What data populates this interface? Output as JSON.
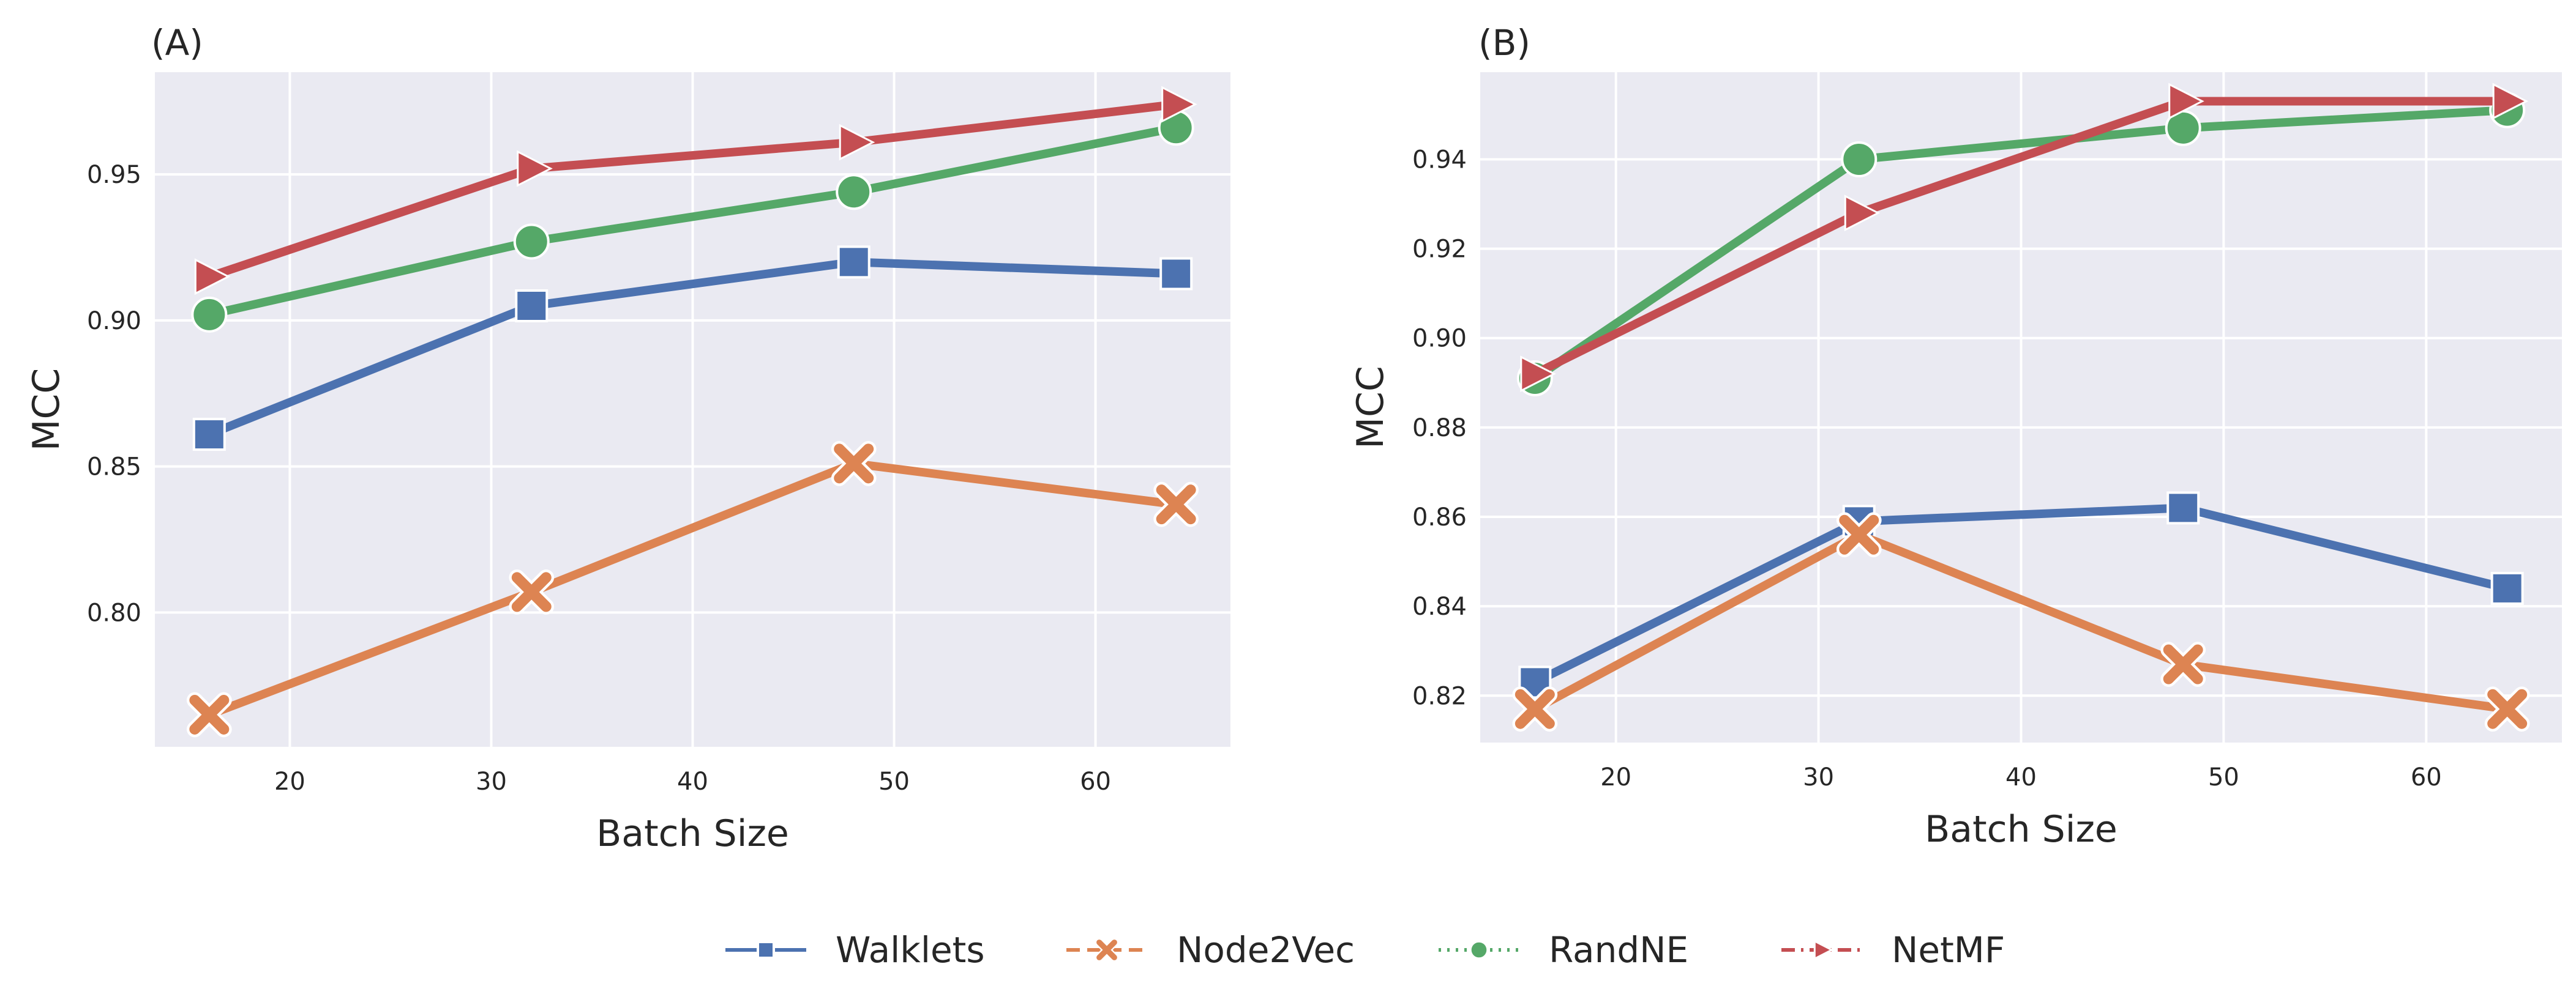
{
  "chart_data": [
    {
      "type": "line",
      "panel_label": "(A)",
      "xlabel": "Batch Size",
      "ylabel": "MCC",
      "xlim": [
        13.3,
        66.7
      ],
      "ylim": [
        0.754,
        0.985
      ],
      "xticks": [
        20,
        30,
        40,
        50,
        60
      ],
      "yticks": [
        0.8,
        0.85,
        0.9,
        0.95
      ],
      "ytick_labels": [
        "0.80",
        "0.85",
        "0.90",
        "0.95"
      ],
      "grid": true,
      "series": [
        {
          "name": "Walklets",
          "x": [
            16,
            32,
            48,
            64
          ],
          "y": [
            0.861,
            0.905,
            0.92,
            0.916
          ]
        },
        {
          "name": "Node2Vec",
          "x": [
            16,
            32,
            48,
            64
          ],
          "y": [
            0.765,
            0.807,
            0.851,
            0.837
          ]
        },
        {
          "name": "RandNE",
          "x": [
            16,
            32,
            48,
            64
          ],
          "y": [
            0.902,
            0.927,
            0.944,
            0.966
          ]
        },
        {
          "name": "NetMF",
          "x": [
            16,
            32,
            48,
            64
          ],
          "y": [
            0.915,
            0.952,
            0.961,
            0.974
          ]
        }
      ]
    },
    {
      "type": "line",
      "panel_label": "(B)",
      "xlabel": "Batch Size",
      "ylabel": "MCC",
      "xlim": [
        13.3,
        66.7
      ],
      "ylim": [
        0.8095,
        0.9595
      ],
      "xticks": [
        20,
        30,
        40,
        50,
        60
      ],
      "yticks": [
        0.82,
        0.84,
        0.86,
        0.88,
        0.9,
        0.92,
        0.94
      ],
      "ytick_labels": [
        "0.82",
        "0.84",
        "0.86",
        "0.88",
        "0.90",
        "0.92",
        "0.94"
      ],
      "grid": true,
      "series": [
        {
          "name": "Walklets",
          "x": [
            16,
            32,
            48,
            64
          ],
          "y": [
            0.823,
            0.859,
            0.862,
            0.844
          ]
        },
        {
          "name": "Node2Vec",
          "x": [
            16,
            32,
            48,
            64
          ],
          "y": [
            0.817,
            0.856,
            0.827,
            0.817
          ]
        },
        {
          "name": "RandNE",
          "x": [
            16,
            32,
            48,
            64
          ],
          "y": [
            0.891,
            0.94,
            0.947,
            0.951
          ]
        },
        {
          "name": "NetMF",
          "x": [
            16,
            32,
            48,
            64
          ],
          "y": [
            0.892,
            0.928,
            0.953,
            0.953
          ]
        }
      ]
    }
  ],
  "legend": {
    "placement": "bottom-center",
    "items": [
      {
        "label": "Walklets",
        "color": "#4c72b0",
        "marker": "square",
        "dash": "solid"
      },
      {
        "label": "Node2Vec",
        "color": "#dd8452",
        "marker": "x",
        "dash": "dashed"
      },
      {
        "label": "RandNE",
        "color": "#55a868",
        "marker": "circle",
        "dash": "dotted"
      },
      {
        "label": "NetMF",
        "color": "#c44e52",
        "marker": "triangle-right",
        "dash": "dashdot"
      }
    ]
  },
  "styles": {
    "plot_background": "#eaeaf2",
    "grid_color": "#ffffff",
    "series_colors": {
      "Walklets": "#4c72b0",
      "Node2Vec": "#dd8452",
      "RandNE": "#55a868",
      "NetMF": "#c44e52"
    }
  }
}
